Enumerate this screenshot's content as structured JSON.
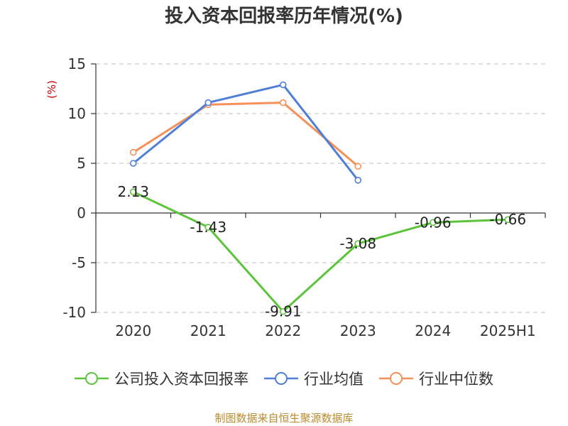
{
  "title": "投入资本回报率历年情况(%)",
  "source": "制图数据来自恒生聚源数据库",
  "chart_data": {
    "type": "line",
    "title": "投入资本回报率历年情况(%)",
    "ylabel": "(%)",
    "ylim": [
      -10,
      15
    ],
    "yticks": [
      15,
      10,
      5,
      0,
      -5,
      -10
    ],
    "categories": [
      "2020",
      "2021",
      "2022",
      "2023",
      "2024",
      "2025H1"
    ],
    "grid": true,
    "legend_position": "bottom",
    "series": [
      {
        "name": "公司投入资本回报率",
        "color": "#5cc43a",
        "values": [
          2.13,
          -1.43,
          -9.91,
          -3.08,
          -0.96,
          -0.66
        ],
        "labels": [
          "2.13",
          "-1.43",
          "-9.91",
          "-3.08",
          "-0.96",
          "-0.66"
        ]
      },
      {
        "name": "行业均值",
        "color": "#4f7fd6",
        "values": [
          5.0,
          11.1,
          12.9,
          3.3,
          null,
          null
        ]
      },
      {
        "name": "行业中位数",
        "color": "#f59058",
        "values": [
          6.1,
          10.9,
          11.1,
          4.7,
          null,
          null
        ]
      }
    ]
  }
}
